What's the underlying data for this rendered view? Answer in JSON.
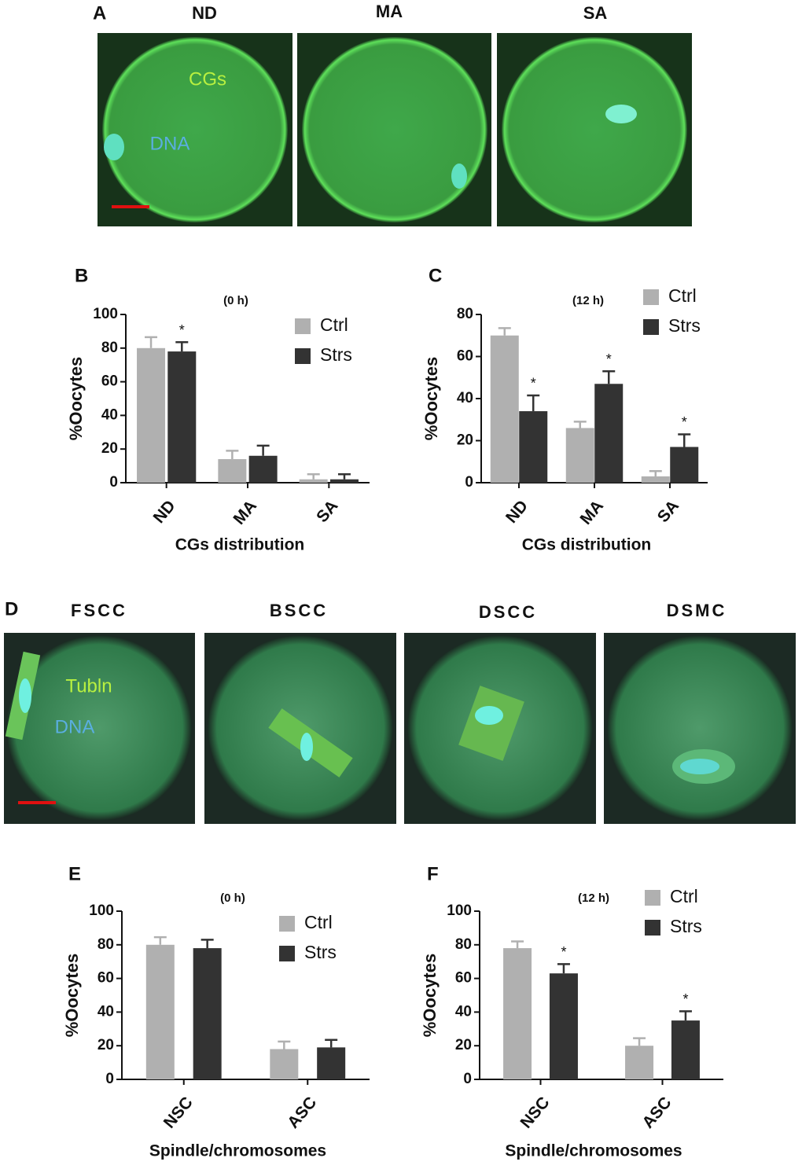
{
  "panel_a": {
    "letter": "A",
    "columns": [
      "ND",
      "MA",
      "SA"
    ],
    "labels": [
      "CGs",
      "DNA"
    ]
  },
  "panel_d": {
    "letter": "D",
    "columns": [
      "FSCC",
      "BSCC",
      "DSCC",
      "DSMC"
    ],
    "labels": [
      "Tubln",
      "DNA"
    ]
  },
  "chart_data": [
    {
      "type": "bar",
      "panel": "B",
      "title": "(0 h)",
      "y_label": "%Oocytes",
      "x_label": "CGs distribution",
      "categories": [
        "ND",
        "MA",
        "SA"
      ],
      "ylim": [
        0,
        100
      ],
      "yticks": [
        0,
        20,
        40,
        60,
        80,
        100
      ],
      "series": [
        {
          "name": "Ctrl",
          "color": "#b0b0b0",
          "values": [
            80,
            14,
            2
          ],
          "errors": [
            6.5,
            5,
            3
          ],
          "annotations": [
            null,
            null,
            null
          ]
        },
        {
          "name": "Strs",
          "color": "#333333",
          "values": [
            78,
            16,
            2
          ],
          "errors": [
            5.5,
            6,
            3
          ],
          "annotations": [
            "*",
            null,
            null
          ]
        }
      ]
    },
    {
      "type": "bar",
      "panel": "C",
      "title": "(12 h)",
      "y_label": "%Oocytes",
      "x_label": "CGs distribution",
      "categories": [
        "ND",
        "MA",
        "SA"
      ],
      "ylim": [
        0,
        80
      ],
      "yticks": [
        0,
        20,
        40,
        60,
        80
      ],
      "series": [
        {
          "name": "Ctrl",
          "color": "#b0b0b0",
          "values": [
            70,
            26,
            3
          ],
          "errors": [
            3.5,
            3,
            2.5
          ],
          "annotations": [
            null,
            null,
            null
          ]
        },
        {
          "name": "Strs",
          "color": "#333333",
          "values": [
            34,
            47,
            17
          ],
          "errors": [
            7.5,
            6,
            6
          ],
          "annotations": [
            "*",
            "*",
            "*"
          ]
        }
      ]
    },
    {
      "type": "bar",
      "panel": "E",
      "title": "(0 h)",
      "y_label": "%Oocytes",
      "x_label": "Spindle/chromosomes",
      "categories": [
        "NSC",
        "ASC"
      ],
      "ylim": [
        0,
        100
      ],
      "yticks": [
        0,
        20,
        40,
        60,
        80,
        100
      ],
      "series": [
        {
          "name": "Ctrl",
          "color": "#b0b0b0",
          "values": [
            80,
            18
          ],
          "errors": [
            4.5,
            4.5
          ],
          "annotations": [
            null,
            null
          ]
        },
        {
          "name": "Strs",
          "color": "#333333",
          "values": [
            78,
            19
          ],
          "errors": [
            5,
            4.5
          ],
          "annotations": [
            null,
            null
          ]
        }
      ]
    },
    {
      "type": "bar",
      "panel": "F",
      "title": "(12 h)",
      "y_label": "%Oocytes",
      "x_label": "Spindle/chromosomes",
      "categories": [
        "NSC",
        "ASC"
      ],
      "ylim": [
        0,
        100
      ],
      "yticks": [
        0,
        20,
        40,
        60,
        80,
        100
      ],
      "series": [
        {
          "name": "Ctrl",
          "color": "#b0b0b0",
          "values": [
            78,
            20
          ],
          "errors": [
            4,
            4.5
          ],
          "annotations": [
            null,
            null
          ]
        },
        {
          "name": "Strs",
          "color": "#333333",
          "values": [
            63,
            35
          ],
          "errors": [
            5.5,
            5.5
          ],
          "annotations": [
            "*",
            "*"
          ]
        }
      ]
    }
  ]
}
